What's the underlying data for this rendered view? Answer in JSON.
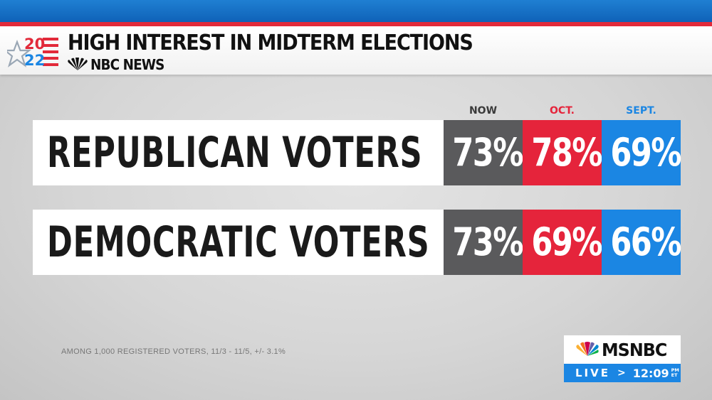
{
  "header": {
    "logo_top": "20",
    "logo_bottom": "22",
    "title": "HIGH INTEREST IN MIDTERM ELECTIONS",
    "network": "NBC NEWS"
  },
  "colors": {
    "now": "#5a5a5c",
    "oct": "#e5243b",
    "sept": "#1b86e3",
    "now_header": "#3a3a3a",
    "oct_header": "#e5243b",
    "sept_header": "#1b86e3"
  },
  "chart_data": {
    "type": "table",
    "title": "HIGH INTEREST IN MIDTERM ELECTIONS",
    "columns": [
      "NOW",
      "OCT.",
      "SEPT."
    ],
    "rows": [
      {
        "label": "REPUBLICAN VOTERS",
        "values": [
          "73%",
          "78%",
          "69%"
        ]
      },
      {
        "label": "DEMOCRATIC VOTERS",
        "values": [
          "73%",
          "69%",
          "66%"
        ]
      }
    ],
    "footnote": "AMONG 1,000 REGISTERED VOTERS, 11/3 - 11/5, +/- 3.1%"
  },
  "bug": {
    "brand": "MSNBC",
    "live": "LIVE",
    "chevron": ">",
    "time": "12:09",
    "ampm": "PM",
    "tz": "ET"
  }
}
